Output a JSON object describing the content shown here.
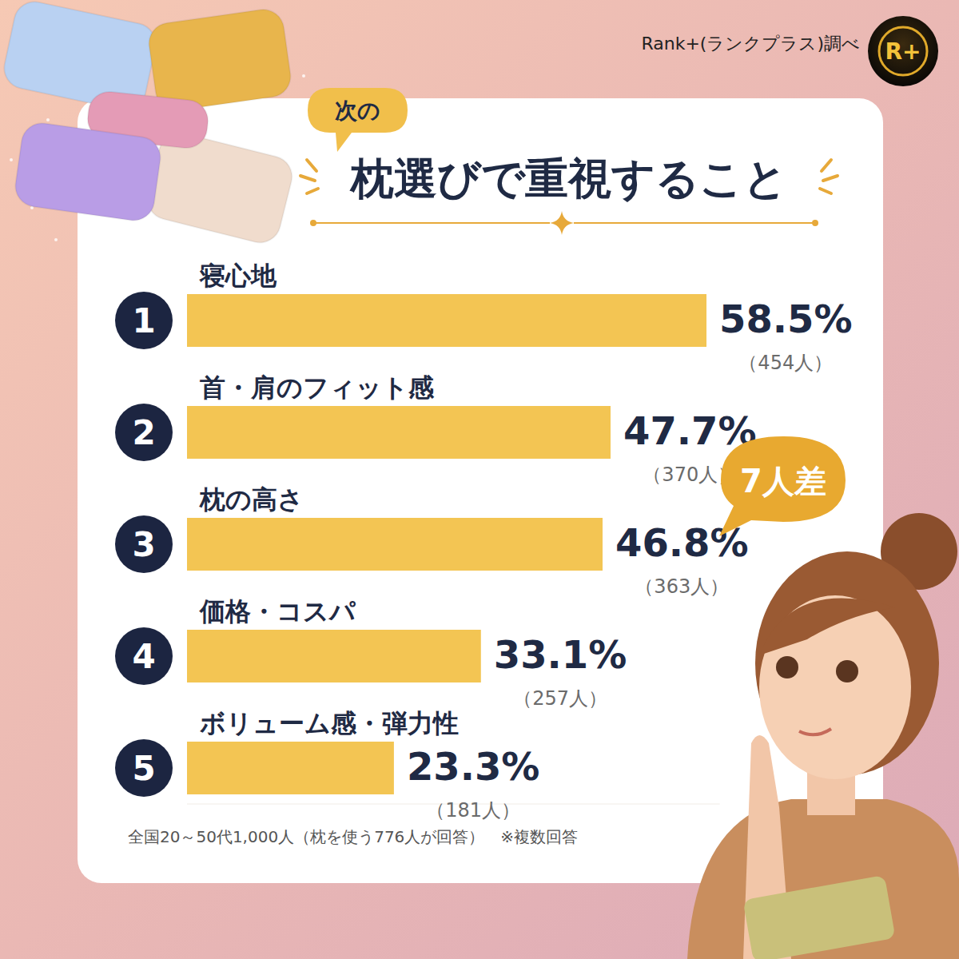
{
  "chart_data": {
    "type": "bar",
    "orientation": "horizontal",
    "title": "枕選びで重視すること",
    "subtitle": "次の",
    "source": "Rank+(ランクプラス)調べ",
    "logo": "R+",
    "categories": [
      "寝心地",
      "首・肩のフィット感",
      "枕の高さ",
      "価格・コスパ",
      "ボリューム感・弾力性"
    ],
    "values": [
      58.5,
      47.7,
      46.8,
      33.1,
      23.3
    ],
    "value_labels": [
      "58.5%",
      "47.7%",
      "46.8%",
      "33.1%",
      "23.3%"
    ],
    "ranks": [
      1,
      2,
      3,
      4,
      5
    ],
    "count_labels": [
      "（454人）",
      "（370人）",
      "（363人）",
      "（257人）",
      "（181人）"
    ],
    "annotation": "7人差",
    "note": "全国20～50代1,000人（枕を使う776人が回答）　※複数回答",
    "color": "#f3c553",
    "xlim": [
      0,
      60
    ],
    "grid": false,
    "tick_labels": false,
    "data_labels": true
  }
}
